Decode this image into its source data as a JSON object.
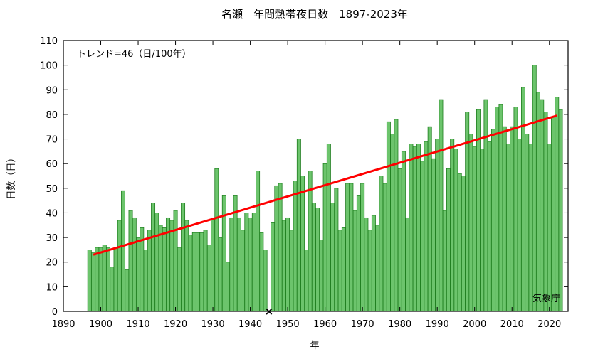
{
  "chart_data": {
    "type": "bar",
    "title": "名瀬　年間熱帯夜日数　1897-2023年",
    "xlabel": "年",
    "ylabel": "日数（日）",
    "xlim": [
      1890,
      2025
    ],
    "ylim": [
      0,
      110
    ],
    "x_ticks": [
      1890,
      1900,
      1910,
      1920,
      1930,
      1940,
      1950,
      1960,
      1970,
      1980,
      1990,
      2000,
      2010,
      2020
    ],
    "y_ticks": [
      0,
      10,
      20,
      30,
      40,
      50,
      60,
      70,
      80,
      90,
      100,
      110
    ],
    "grid": false,
    "bar_color": "#6cc46c",
    "bar_edge_color": "#1e7d1e",
    "trend_color": "#ff0000",
    "trend_label": "トレンド=46（日/100年）",
    "trend_line": {
      "x": [
        1898,
        2022
      ],
      "y": [
        23,
        79.5
      ]
    },
    "missing_marker": {
      "x": 1945,
      "y": 0,
      "symbol": "×"
    },
    "source": "気象庁",
    "series": [
      {
        "x": [
          1897,
          1898,
          1899,
          1900,
          1901,
          1902,
          1903,
          1904,
          1905,
          1906,
          1907,
          1908,
          1909,
          1910,
          1911,
          1912,
          1913,
          1914,
          1915,
          1916,
          1917,
          1918,
          1919,
          1920,
          1921,
          1922,
          1923,
          1924,
          1925,
          1926,
          1927,
          1928,
          1929,
          1930,
          1931,
          1932,
          1933,
          1934,
          1935,
          1936,
          1937,
          1938,
          1939,
          1940,
          1941,
          1942,
          1943,
          1944,
          1946,
          1947,
          1948,
          1949,
          1950,
          1951,
          1952,
          1953,
          1954,
          1955,
          1956,
          1957,
          1958,
          1959,
          1960,
          1961,
          1962,
          1963,
          1964,
          1965,
          1966,
          1967,
          1968,
          1969,
          1970,
          1971,
          1972,
          1973,
          1974,
          1975,
          1976,
          1977,
          1978,
          1979,
          1980,
          1981,
          1982,
          1983,
          1984,
          1985,
          1986,
          1987,
          1988,
          1989,
          1990,
          1991,
          1992,
          1993,
          1994,
          1995,
          1996,
          1997,
          1998,
          1999,
          2000,
          2001,
          2002,
          2003,
          2004,
          2005,
          2006,
          2007,
          2008,
          2009,
          2010,
          2011,
          2012,
          2013,
          2014,
          2015,
          2016,
          2017,
          2018,
          2019,
          2020,
          2021,
          2022,
          2023
        ],
        "values": [
          25,
          24,
          26,
          26,
          27,
          26,
          18,
          26,
          37,
          49,
          17,
          41,
          38,
          30,
          34,
          25,
          33,
          44,
          40,
          35,
          34,
          38,
          37,
          41,
          26,
          44,
          37,
          31,
          32,
          32,
          32,
          33,
          27,
          38,
          58,
          30,
          47,
          20,
          38,
          47,
          38,
          33,
          40,
          38,
          40,
          57,
          32,
          25,
          36,
          51,
          52,
          37,
          38,
          33,
          53,
          70,
          55,
          25,
          57,
          44,
          42,
          29,
          60,
          68,
          44,
          50,
          33,
          34,
          52,
          52,
          41,
          47,
          52,
          38,
          33,
          39,
          35,
          55,
          52,
          77,
          72,
          78,
          58,
          65,
          38,
          68,
          67,
          68,
          61,
          69,
          75,
          62,
          70,
          86,
          41,
          58,
          70,
          66,
          56,
          55,
          81,
          72,
          67,
          82,
          66,
          86,
          69,
          74,
          83,
          84,
          75,
          68,
          75,
          83,
          70,
          91,
          72,
          68,
          100,
          89,
          86,
          81,
          68,
          79,
          87,
          82
        ]
      }
    ]
  }
}
